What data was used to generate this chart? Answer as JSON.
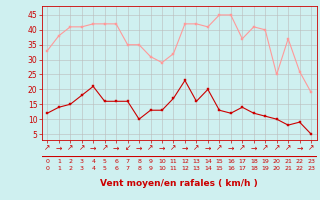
{
  "x": [
    0,
    1,
    2,
    3,
    4,
    5,
    6,
    7,
    8,
    9,
    10,
    11,
    12,
    13,
    14,
    15,
    16,
    17,
    18,
    19,
    20,
    21,
    22,
    23
  ],
  "wind_avg": [
    12,
    14,
    15,
    18,
    21,
    16,
    16,
    16,
    10,
    13,
    13,
    17,
    23,
    16,
    20,
    13,
    12,
    14,
    12,
    11,
    10,
    8,
    9,
    5
  ],
  "wind_gust": [
    33,
    38,
    41,
    41,
    42,
    42,
    42,
    35,
    35,
    31,
    29,
    32,
    42,
    42,
    41,
    45,
    45,
    37,
    41,
    40,
    25,
    37,
    26,
    19
  ],
  "wind_dirs": [
    "↗",
    "→",
    "↗",
    "↗",
    "→",
    "↗",
    "→",
    "↙",
    "→",
    "↗",
    "→",
    "↗",
    "→",
    "↗",
    "→",
    "↗",
    "→",
    "↗",
    "→",
    "↗",
    "↗",
    "↗",
    "→",
    "↗"
  ],
  "bg_color": "#cff0f0",
  "line_avg_color": "#cc0000",
  "line_gust_color": "#ff9999",
  "grid_color": "#bbbbbb",
  "arrow_color": "#cc0000",
  "xlabel": "Vent moyen/en rafales ( km/h )",
  "xlabel_color": "#cc0000",
  "tick_color": "#cc0000",
  "spine_color": "#cc0000",
  "ylabel_ticks": [
    5,
    10,
    15,
    20,
    25,
    30,
    35,
    40,
    45
  ],
  "ylim": [
    3,
    48
  ],
  "xlim": [
    -0.5,
    23.5
  ]
}
